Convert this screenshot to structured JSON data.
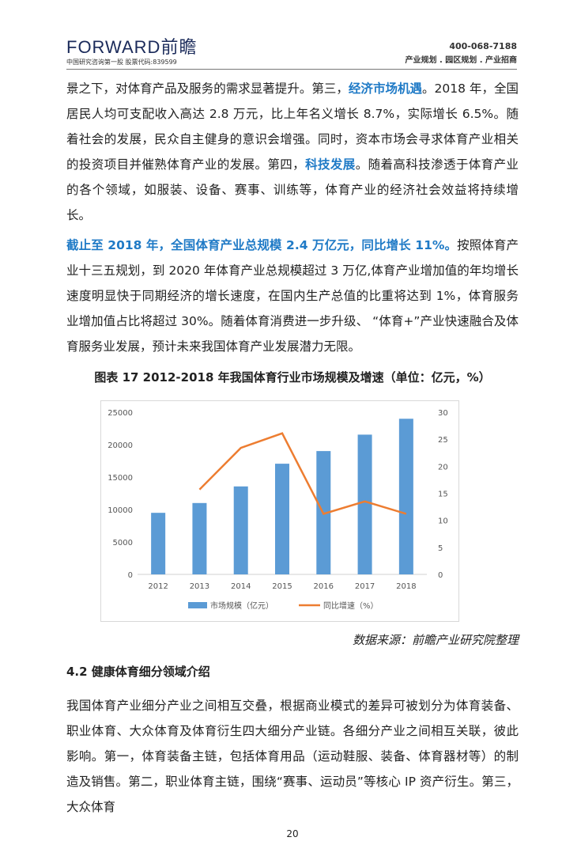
{
  "header": {
    "logo": "FORWARD前瞻",
    "logo_sub": "中国研究咨询第一股  股票代码:839599",
    "phone": "400-068-7188",
    "slogan": "产业规划 . 园区规划 . 产业招商"
  },
  "p1": {
    "a": "景之下，对体育产品及服务的需求显著提升。第三，",
    "b": "经济市场机遇",
    "c": "。2018 年，全国居民人均可支配收入高达 2.8 万元，比上年名义增长 8.7%，实际增长 6.5%。随着社会的发展，民众自主健身的意识会增强。同时，资本市场会寻求体育产业相关的投资项目并催熟体育产业的发展。第四，",
    "d": "科技发展",
    "e": "。随着高科技渗透于体育产业的各个领域，如服装、设备、赛事、训练等，体育产业的经济社会效益将持续增长。"
  },
  "p2": {
    "a": "截止至 2018 年，全国体育产业总规模 2.4 万亿元，同比增长 11%。",
    "b": "按照体育产业十三五规划，到 2020 年体育产业总规模超过 3 万亿,体育产业增加值的年均增长速度明显快于同期经济的增长速度，在国内生产总值的比重将达到 1%，体育服务业增加值占比将超过 30%。随着体育消费进一步升级、 “体育+”产业快速融合及体育服务业发展，预计未来我国体育产业发展潜力无限。"
  },
  "caption": "图表 17   2012-2018 年我国体育行业市场规模及增速（单位：亿元，%）",
  "chart_data": {
    "type": "bar+line",
    "categories": [
      "2012",
      "2013",
      "2014",
      "2015",
      "2016",
      "2017",
      "2018"
    ],
    "series": [
      {
        "name": "市场规模（亿元）",
        "type": "bar",
        "axis": "left",
        "color": "#5b9bd5",
        "values": [
          9490,
          11000,
          13560,
          17060,
          19010,
          21540,
          23990
        ]
      },
      {
        "name": "同比增速（%）",
        "type": "line",
        "axis": "right",
        "color": "#ed7d31",
        "values": [
          null,
          15.7,
          23.4,
          26.1,
          11.2,
          13.5,
          11.2
        ]
      }
    ],
    "ylim_left": [
      0,
      25000
    ],
    "yticks_left": [
      "0",
      "5000",
      "10000",
      "15000",
      "20000",
      "25000"
    ],
    "ylim_right": [
      0,
      30
    ],
    "yticks_right": [
      "0",
      "5",
      "10",
      "15",
      "20",
      "25",
      "30"
    ],
    "legend": "bottom",
    "grid": false
  },
  "source": "数据来源：前瞻产业研究院整理",
  "section": "4.2  健康体育细分领域介绍",
  "p3": "我国体育产业细分产业之间相互交叠，根据商业模式的差异可被划分为体育装备、职业体育、大众体育及体育衍生四大细分产业链。各细分产业之间相互关联，彼此影响。第一，体育装备主链，包括体育用品（运动鞋服、装备、体育器材等）的制造及销售。第二，职业体育主链，围绕“赛事、运动员”等核心 IP 资产衍生。第三，大众体育",
  "page_number": "20"
}
